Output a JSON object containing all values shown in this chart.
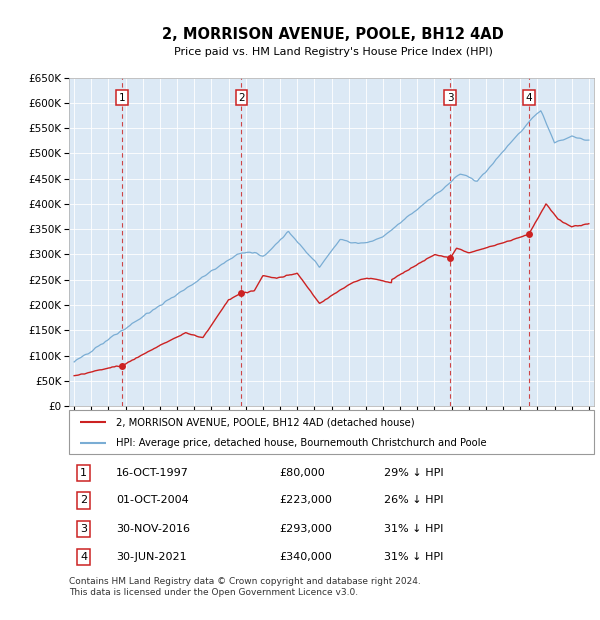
{
  "title": "2, MORRISON AVENUE, POOLE, BH12 4AD",
  "subtitle": "Price paid vs. HM Land Registry's House Price Index (HPI)",
  "sale_dates_num": [
    1997.79,
    2004.75,
    2016.92,
    2021.5
  ],
  "sale_prices": [
    80000,
    223000,
    293000,
    340000
  ],
  "sale_labels": [
    "1",
    "2",
    "3",
    "4"
  ],
  "sale_dates_str": [
    "16-OCT-1997",
    "01-OCT-2004",
    "30-NOV-2016",
    "30-JUN-2021"
  ],
  "sale_prices_str": [
    "£80,000",
    "£223,000",
    "£293,000",
    "£340,000"
  ],
  "sale_hpi_pct": [
    "29% ↓ HPI",
    "26% ↓ HPI",
    "31% ↓ HPI",
    "31% ↓ HPI"
  ],
  "hpi_line_color": "#7aadd4",
  "sale_line_color": "#cc2222",
  "dashed_line_color": "#cc3333",
  "plot_bg_color": "#dce9f5",
  "ylim": [
    0,
    650000
  ],
  "xlim_start": 1994.7,
  "xlim_end": 2025.3,
  "legend_sale_label": "2, MORRISON AVENUE, POOLE, BH12 4AD (detached house)",
  "legend_hpi_label": "HPI: Average price, detached house, Bournemouth Christchurch and Poole",
  "footnote": "Contains HM Land Registry data © Crown copyright and database right 2024.\nThis data is licensed under the Open Government Licence v3.0."
}
